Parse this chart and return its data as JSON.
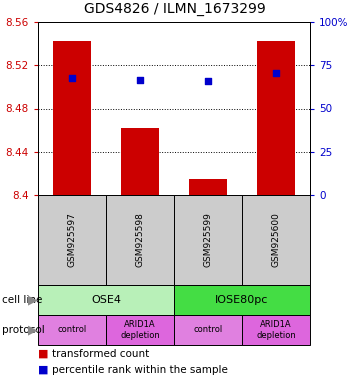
{
  "title": "GDS4826 / ILMN_1673299",
  "samples": [
    "GSM925597",
    "GSM925598",
    "GSM925599",
    "GSM925600"
  ],
  "bar_values": [
    8.542,
    8.462,
    8.415,
    8.542
  ],
  "blue_values": [
    8.508,
    8.506,
    8.505,
    8.513
  ],
  "ymin": 8.4,
  "ymax": 8.56,
  "yticks": [
    8.4,
    8.44,
    8.48,
    8.52,
    8.56
  ],
  "ytick_labels_left": [
    "8.4",
    "8.44",
    "8.48",
    "8.52",
    "8.56"
  ],
  "ytick_labels_right": [
    "0",
    "25",
    "50",
    "75",
    "100%"
  ],
  "bar_color": "#cc0000",
  "blue_color": "#0000cc",
  "bar_bottom": 8.4,
  "cell_line_groups": [
    {
      "label": "OSE4",
      "start": 0,
      "end": 1,
      "color": "#b8f0b8"
    },
    {
      "label": "IOSE80pc",
      "start": 2,
      "end": 3,
      "color": "#44dd44"
    }
  ],
  "protocol_groups": [
    {
      "label": "control",
      "start": 0,
      "end": 0,
      "color": "#e080e0"
    },
    {
      "label": "ARID1A\ndepletion",
      "start": 1,
      "end": 1,
      "color": "#dd66dd"
    },
    {
      "label": "control",
      "start": 2,
      "end": 2,
      "color": "#e080e0"
    },
    {
      "label": "ARID1A\ndepletion",
      "start": 3,
      "end": 3,
      "color": "#dd66dd"
    }
  ],
  "sample_box_color": "#cccccc",
  "legend_red_label": "transformed count",
  "legend_blue_label": "percentile rank within the sample",
  "cell_line_label": "cell line",
  "protocol_label": "protocol",
  "background_color": "#ffffff"
}
